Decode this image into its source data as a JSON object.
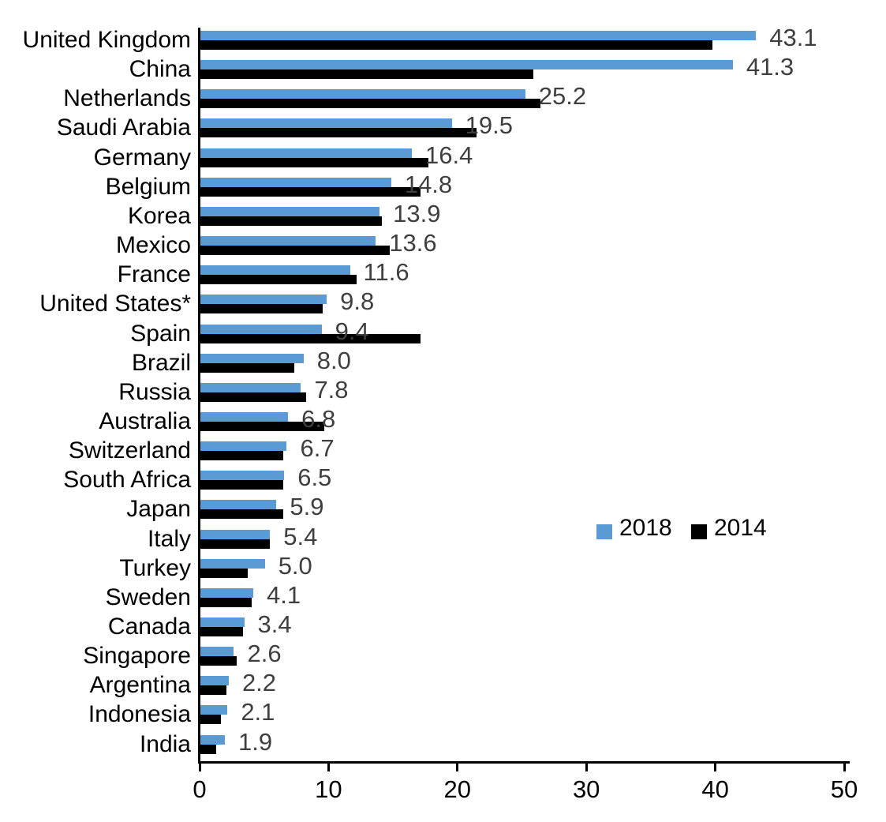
{
  "chart_data": {
    "type": "bar",
    "orientation": "horizontal",
    "title": "",
    "xlabel": "",
    "ylabel": "",
    "categories": [
      "United Kingdom",
      "China",
      "Netherlands",
      "Saudi Arabia",
      "Germany",
      "Belgium",
      "Korea",
      "Mexico",
      "France",
      "United States*",
      "Spain",
      "Brazil",
      "Russia",
      "Australia",
      "Switzerland",
      "South Africa",
      "Japan",
      "Italy",
      "Turkey",
      "Sweden",
      "Canada",
      "Singapore",
      "Argentina",
      "Indonesia",
      "India"
    ],
    "series": [
      {
        "name": "2018",
        "color": "#5B9BD5",
        "values": [
          43.1,
          41.3,
          25.2,
          19.5,
          16.4,
          14.8,
          13.9,
          13.6,
          11.6,
          9.8,
          9.4,
          8.0,
          7.8,
          6.8,
          6.7,
          6.5,
          5.9,
          5.4,
          5.0,
          4.1,
          3.4,
          2.6,
          2.2,
          2.1,
          1.9
        ],
        "has_data_labels": true
      },
      {
        "name": "2014",
        "color": "#000000",
        "values": [
          39.7,
          25.8,
          26.4,
          21.4,
          17.7,
          17.1,
          14.1,
          14.7,
          12.1,
          9.5,
          17.1,
          7.3,
          8.2,
          9.6,
          6.4,
          6.4,
          6.4,
          5.4,
          3.7,
          4.0,
          3.3,
          2.8,
          2.0,
          1.6,
          1.2
        ],
        "has_data_labels": false
      }
    ],
    "data_labels": [
      "43.1",
      "41.3",
      "25.2",
      "19.5",
      "16.4",
      "14.8",
      "13.9",
      "13.6",
      "11.6",
      "9.8",
      "9.4",
      "8.0",
      "7.8",
      "6.8",
      "6.7",
      "6.5",
      "5.9",
      "5.4",
      "5.0",
      "4.1",
      "3.4",
      "2.6",
      "2.2",
      "2.1",
      "1.9"
    ],
    "xlim": [
      0,
      50
    ],
    "x_ticks": [
      "0",
      "10",
      "20",
      "30",
      "40",
      "50"
    ],
    "grid": false,
    "legend": {
      "position": "middle-right",
      "entries": [
        "2018",
        "2014"
      ]
    },
    "styles": {
      "data_label_color": "#3F3F3F",
      "axis_color": "#000000",
      "text_color": "#000000",
      "background": "#FFFFFF"
    }
  }
}
